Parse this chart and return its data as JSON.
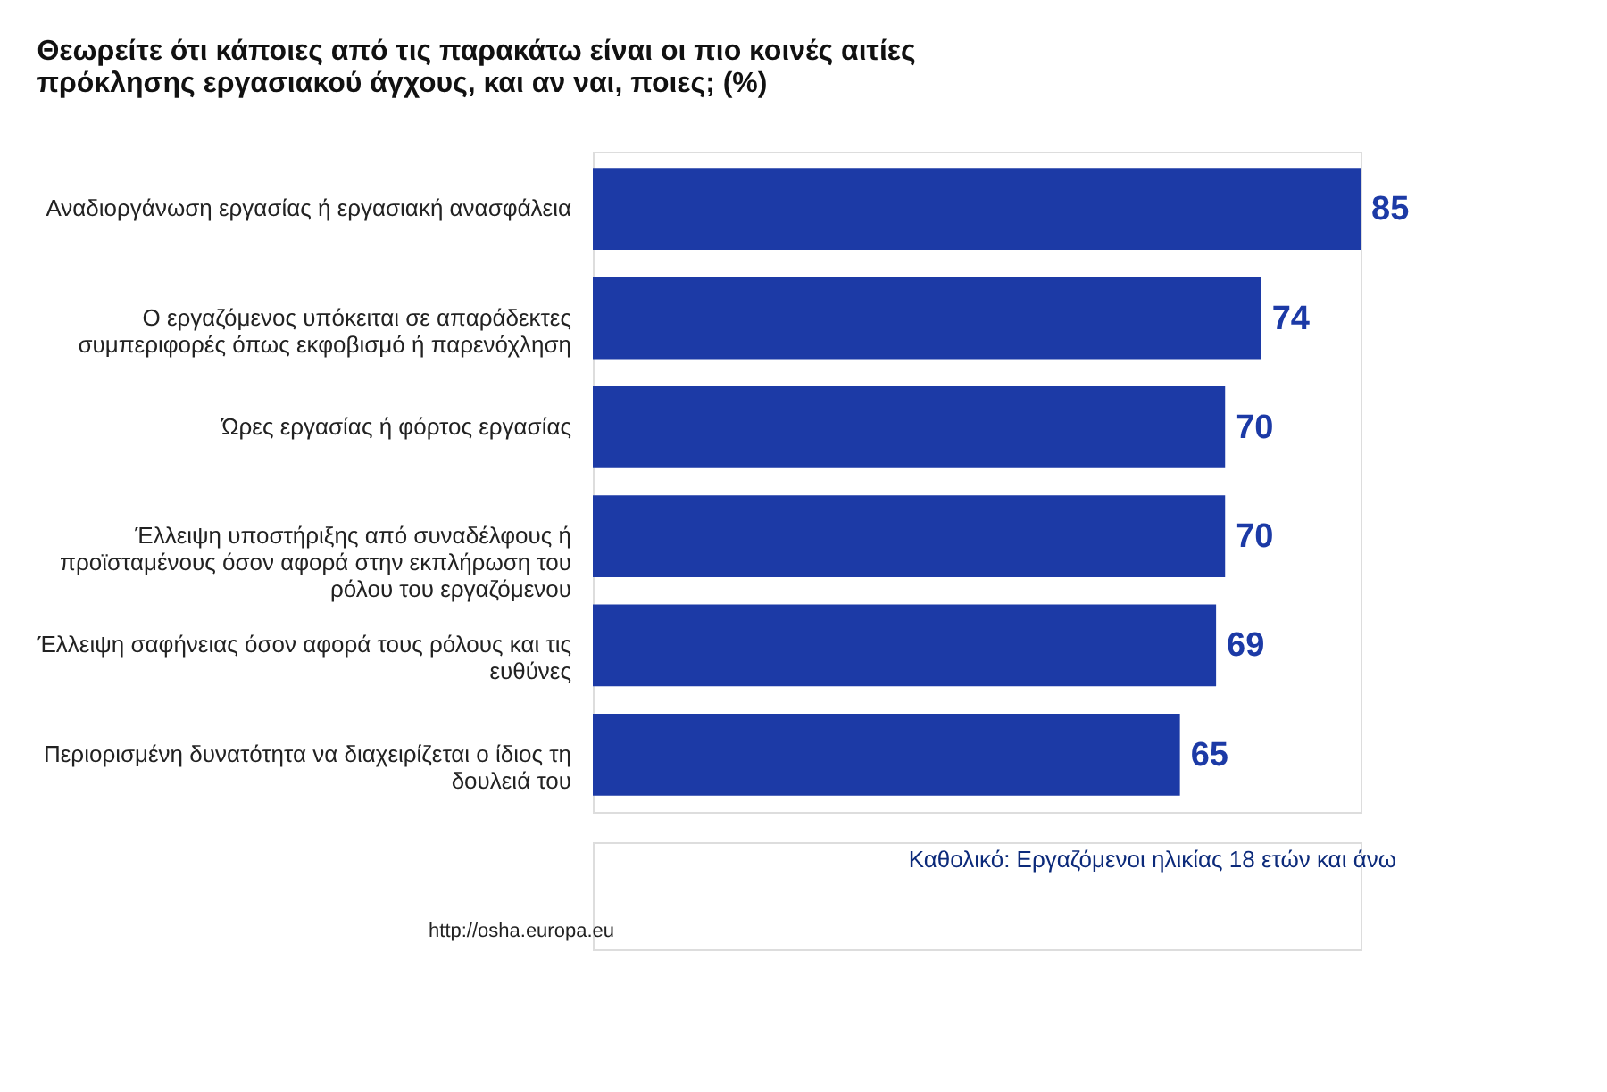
{
  "chart_data": {
    "type": "bar",
    "orientation": "horizontal",
    "title": [
      "Θεωρείτε ότι κάποιες από τις παρακάτω είναι οι πιο κοινές αιτίες",
      "πρόκλησης εργασιακού άγχους, και αν ναι, ποιες; (%)"
    ],
    "categories": [
      "Αναδιοργάνωση εργασίας ή εργασιακή ανασφάλεια",
      "Ο εργαζόμενος υπόκειται σε απαράδεκτες\nσυμπεριφορές όπως εκφοβισμό ή παρενόχληση",
      "Ώρες εργασίας ή φόρτος εργασίας",
      "Έλλειψη υποστήριξης από συναδέλφους ή\nπροϊσταμένους όσον αφορά στην εκπλήρωση του\nρόλου του εργαζόμενου",
      "Έλλειψη σαφήνειας όσον αφορά τους ρόλους και τις\nευθύνες",
      "Περιορισμένη δυνατότητα να διαχειρίζεται ο ίδιος τη\nδουλειά του"
    ],
    "values": [
      85,
      74,
      70,
      70,
      69,
      65
    ],
    "color": "#1c3aa6",
    "data_labels": true,
    "annotations": [
      "Καθολικό: Εργαζόμενοι ηλικίας 18 ετών και άνω",
      "http://osha.europa.eu"
    ]
  }
}
